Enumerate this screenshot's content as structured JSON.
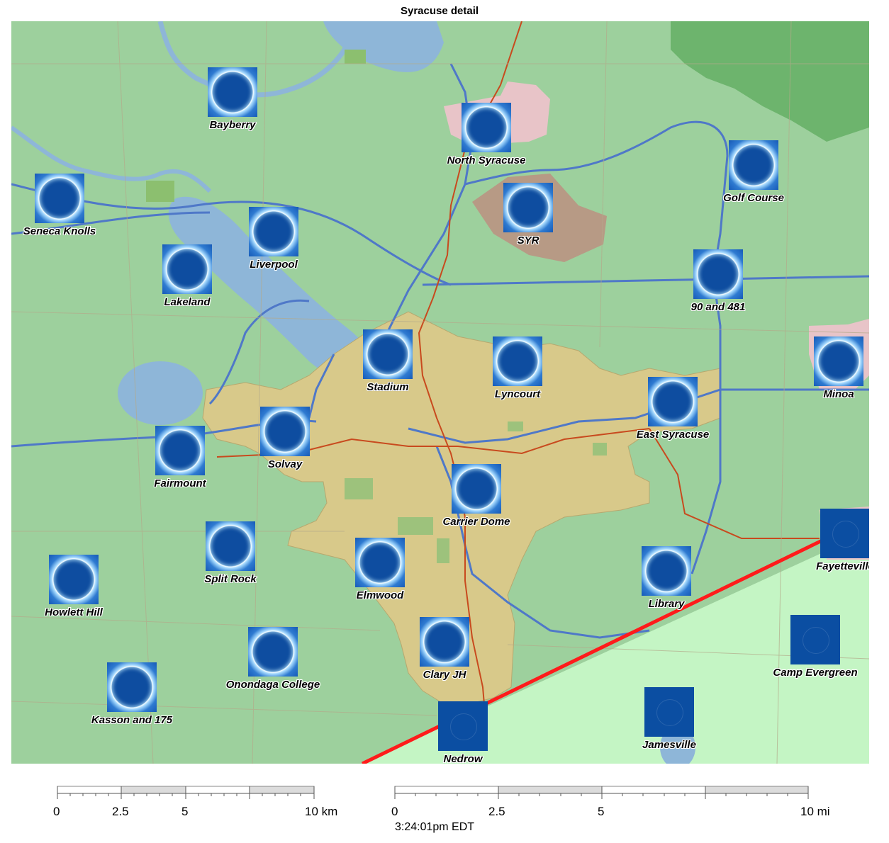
{
  "title": "Syracuse detail",
  "timestamp": "3:24:01pm EDT",
  "colors": {
    "land": "#9dd09d",
    "city": "#d8c98a",
    "water": "#8eb6d8",
    "forest": "#6db46d",
    "south_region": "#c4f5c4",
    "highway": "#4f78c8",
    "rail": "#c84a1e",
    "path_line": "#ff1b1b",
    "marker_blue": "#0b4ea2"
  },
  "markers": [
    {
      "name": "Bayberry",
      "icon": "eclipse-icon"
    },
    {
      "name": "North Syracuse",
      "icon": "eclipse-icon"
    },
    {
      "name": "Golf Course",
      "icon": "eclipse-icon"
    },
    {
      "name": "Seneca Knolls",
      "icon": "eclipse-icon"
    },
    {
      "name": "Liverpool",
      "icon": "eclipse-icon"
    },
    {
      "name": "SYR",
      "icon": "eclipse-icon"
    },
    {
      "name": "Lakeland",
      "icon": "eclipse-icon"
    },
    {
      "name": "90 and 481",
      "icon": "eclipse-icon"
    },
    {
      "name": "Stadium",
      "icon": "eclipse-icon"
    },
    {
      "name": "Lyncourt",
      "icon": "eclipse-icon"
    },
    {
      "name": "Minoa",
      "icon": "eclipse-icon"
    },
    {
      "name": "East Syracuse",
      "icon": "eclipse-icon"
    },
    {
      "name": "Solvay",
      "icon": "eclipse-icon"
    },
    {
      "name": "Fairmount",
      "icon": "eclipse-icon"
    },
    {
      "name": "Carrier Dome",
      "icon": "eclipse-icon"
    },
    {
      "name": "Fayetteville",
      "icon": "dark-square-icon"
    },
    {
      "name": "Split Rock",
      "icon": "eclipse-icon"
    },
    {
      "name": "Elmwood",
      "icon": "eclipse-icon"
    },
    {
      "name": "Library",
      "icon": "eclipse-icon"
    },
    {
      "name": "Howlett Hill",
      "icon": "eclipse-icon"
    },
    {
      "name": "Camp Evergreen",
      "icon": "dark-square-icon"
    },
    {
      "name": "Onondaga College",
      "icon": "eclipse-icon"
    },
    {
      "name": "Clary JH",
      "icon": "eclipse-icon"
    },
    {
      "name": "Kasson and 175",
      "icon": "eclipse-icon"
    },
    {
      "name": "Jamesville",
      "icon": "dark-square-icon"
    },
    {
      "name": "Nedrow",
      "icon": "dark-square-icon"
    }
  ],
  "scale_km": {
    "ticks": [
      "0",
      "2.5",
      "5",
      "10 km"
    ]
  },
  "scale_mi": {
    "ticks": [
      "0",
      "2.5",
      "5",
      "10 mi"
    ]
  }
}
